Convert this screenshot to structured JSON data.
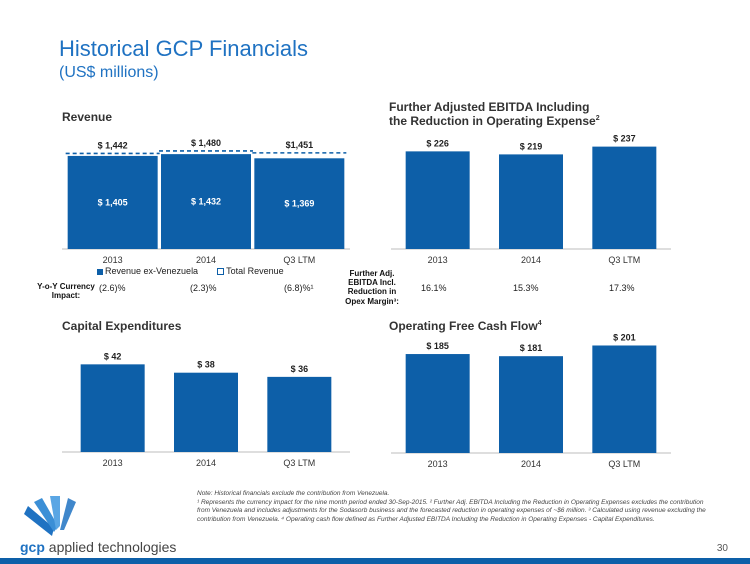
{
  "title": "Historical GCP Financials",
  "subtitle": "(US$ millions)",
  "colors": {
    "bar": "#0d5fa8",
    "accent": "#1f72c2",
    "dash": "#0d5fa8"
  },
  "chart_data": [
    {
      "id": "revenue",
      "type": "bar",
      "title": "Revenue",
      "categories": [
        "2013",
        "2014",
        "Q3 LTM"
      ],
      "series": [
        {
          "name": "Revenue ex-Venezuela",
          "values": [
            1405,
            1432,
            1369
          ],
          "labels": [
            "$ 1,405",
            "$ 1,432",
            "$ 1,369"
          ]
        },
        {
          "name": "Total Revenue",
          "values": [
            1442,
            1480,
            1451
          ],
          "labels": [
            "$ 1,442",
            "$ 1,480",
            "$1,451"
          ]
        }
      ],
      "legend": [
        "Revenue ex-Venezuela",
        "Total Revenue"
      ],
      "ylim": [
        0,
        1600
      ]
    },
    {
      "id": "ebitda",
      "type": "bar",
      "title_line1": "Further Adjusted EBITDA Including",
      "title_line2": "the Reduction in Operating Expense",
      "title_sup": "2",
      "categories": [
        "2013",
        "2014",
        "Q3 LTM"
      ],
      "values": [
        226,
        219,
        237
      ],
      "labels": [
        "$ 226",
        "$ 219",
        "$ 237"
      ],
      "ylim": [
        0,
        250
      ]
    },
    {
      "id": "capex",
      "type": "bar",
      "title": "Capital Expenditures",
      "categories": [
        "2013",
        "2014",
        "Q3 LTM"
      ],
      "values": [
        42,
        38,
        36
      ],
      "labels": [
        "$ 42",
        "$ 38",
        "$ 36"
      ],
      "ylim": [
        0,
        46
      ]
    },
    {
      "id": "ofcf",
      "type": "bar",
      "title": "Operating Free Cash Flow",
      "title_sup": "4",
      "categories": [
        "2013",
        "2014",
        "Q3 LTM"
      ],
      "values": [
        185,
        181,
        201
      ],
      "labels": [
        "$ 185",
        "$ 181",
        "$ 201"
      ],
      "ylim": [
        0,
        215
      ]
    }
  ],
  "currency_row": {
    "label_line1": "Y-o-Y Currency",
    "label_line2": "Impact:",
    "values": [
      "(2.6)%",
      "(2.3)%",
      "(6.8)%¹"
    ]
  },
  "margin_row": {
    "label_line1": "Further Adj.",
    "label_line2": "EBITDA Incl.",
    "label_line3": "Reduction in",
    "label_line4": "Opex Margin³:",
    "values": [
      "16.1%",
      "15.3%",
      "17.3%"
    ]
  },
  "note": {
    "line1": "Note: Historical financials exclude the contribution from Venezuela.",
    "line2": "¹ Represents the currency impact for the nine month period ended 30-Sep-2015. ² Further Adj. EBITDA Including the Reduction in Operating Expenses excludes the contribution from Venezuela and includes adjustments for the Sodasorb business and the forecasted reduction in operating expenses of ~$6 million. ³ Calculated using revenue excluding the contribution from Venezuela. ⁴ Operating cash flow defined as Further Adjusted EBITDA Including the Reduction in Operating Expenses - Capital Expenditures."
  },
  "brand": {
    "name_bold": "gcp",
    "name_rest": " applied technologies",
    "logo_icon": "gcp-logo-icon"
  },
  "page_number": "30"
}
